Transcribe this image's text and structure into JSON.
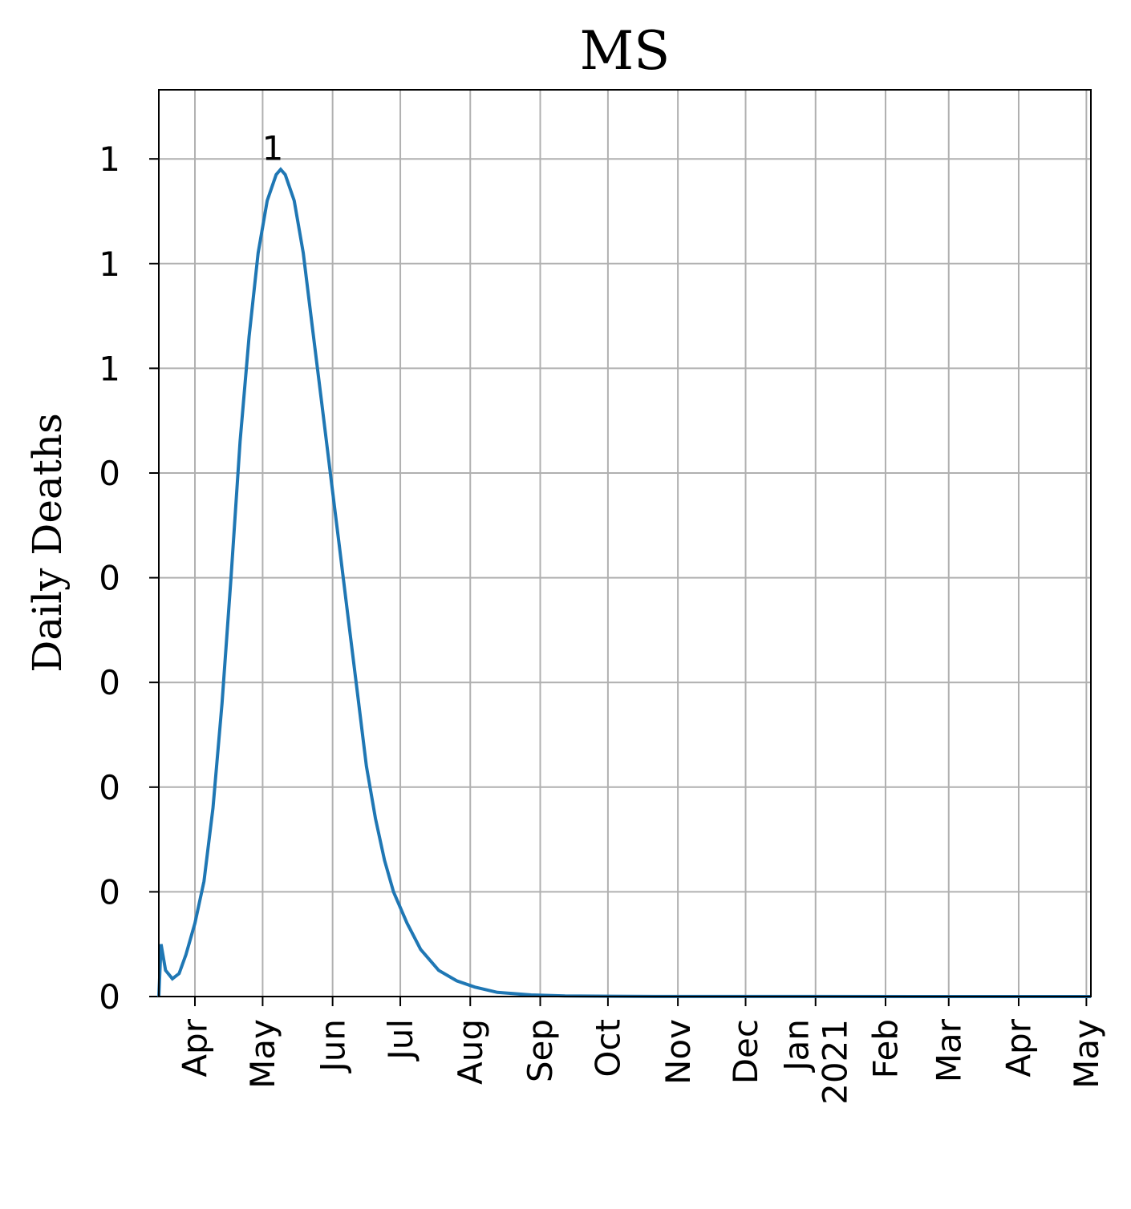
{
  "chart_data": {
    "type": "line",
    "title": "MS",
    "y_label": "Daily Deaths",
    "color": "#1f77b4",
    "grid": true,
    "x": [
      "2020-03-16",
      "2020-03-17",
      "2020-03-19",
      "2020-03-22",
      "2020-03-25",
      "2020-03-28",
      "2020-04-01",
      "2020-04-05",
      "2020-04-09",
      "2020-04-13",
      "2020-04-17",
      "2020-04-21",
      "2020-04-25",
      "2020-04-29",
      "2020-05-03",
      "2020-05-07",
      "2020-05-09",
      "2020-05-11",
      "2020-05-15",
      "2020-05-19",
      "2020-05-23",
      "2020-05-27",
      "2020-05-31",
      "2020-06-04",
      "2020-06-08",
      "2020-06-12",
      "2020-06-16",
      "2020-06-20",
      "2020-06-24",
      "2020-06-28",
      "2020-07-04",
      "2020-07-10",
      "2020-07-18",
      "2020-07-26",
      "2020-08-03",
      "2020-08-13",
      "2020-08-28",
      "2020-09-12",
      "2020-10-22",
      "2021-05-03"
    ],
    "values": [
      0,
      0.05,
      0.025,
      0.017,
      0.022,
      0.04,
      0.07,
      0.11,
      0.18,
      0.28,
      0.4,
      0.53,
      0.63,
      0.71,
      0.76,
      0.785,
      0.79,
      0.785,
      0.76,
      0.71,
      0.64,
      0.57,
      0.5,
      0.43,
      0.36,
      0.29,
      0.22,
      0.17,
      0.13,
      0.1,
      0.07,
      0.045,
      0.025,
      0.015,
      0.009,
      0.004,
      0.0015,
      0.0005,
      0.0001,
      0
    ],
    "annotations": [
      {
        "x": "2020-05-09",
        "value": 0.79,
        "label": "1"
      }
    ],
    "xlim": [
      "2020-03-16",
      "2021-05-03"
    ],
    "xticks": [
      {
        "value": "2020-04-01",
        "label": "Apr"
      },
      {
        "value": "2020-05-01",
        "label": "May"
      },
      {
        "value": "2020-06-01",
        "label": "Jun"
      },
      {
        "value": "2020-07-01",
        "label": "Jul"
      },
      {
        "value": "2020-08-01",
        "label": "Aug"
      },
      {
        "value": "2020-09-01",
        "label": "Sep"
      },
      {
        "value": "2020-10-01",
        "label": "Oct"
      },
      {
        "value": "2020-11-01",
        "label": "Nov"
      },
      {
        "value": "2020-12-01",
        "label": "Dec"
      },
      {
        "value": "2021-01-01",
        "label": "Jan\n2021"
      },
      {
        "value": "2021-02-01",
        "label": "Feb"
      },
      {
        "value": "2021-03-01",
        "label": "Mar"
      },
      {
        "value": "2021-04-01",
        "label": "Apr"
      },
      {
        "value": "2021-05-01",
        "label": "May"
      }
    ],
    "ylim": [
      0,
      0.866
    ],
    "yticks": [
      0,
      {
        "value": 0.1,
        "label": "0"
      },
      {
        "value": 0.2,
        "label": "0"
      },
      {
        "value": 0.3,
        "label": "0"
      },
      {
        "value": 0.4,
        "label": "0"
      },
      {
        "value": 0.5,
        "label": "0"
      },
      {
        "value": 0.6,
        "label": "1"
      },
      {
        "value": 0.7,
        "label": "1"
      },
      {
        "value": 0.8,
        "label": "1"
      }
    ]
  }
}
